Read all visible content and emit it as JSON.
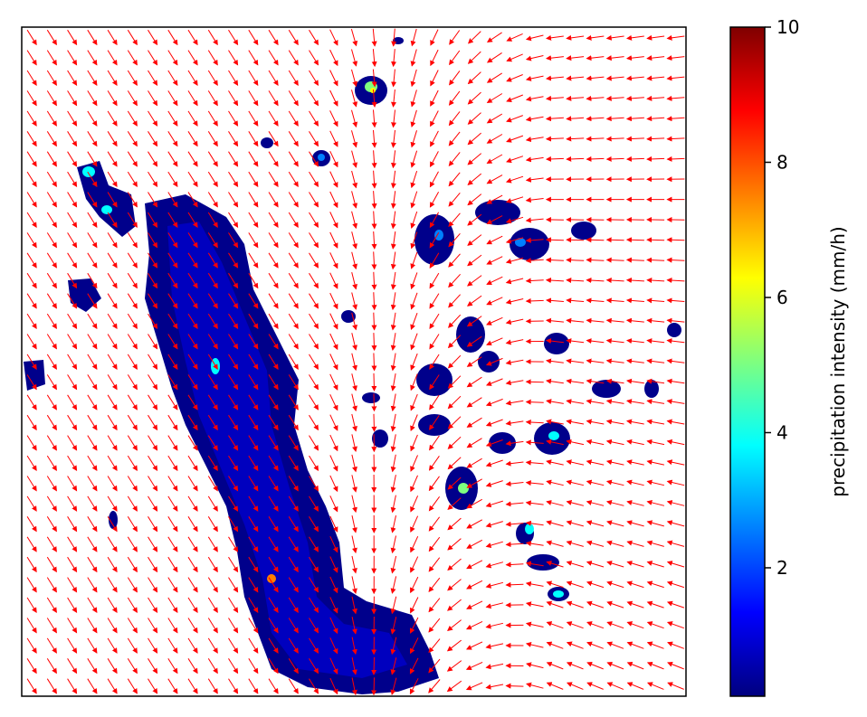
{
  "chart_data": {
    "type": "heatmap",
    "subtype": "precipitation-field-with-motion-vectors",
    "title": "",
    "xlabel": "",
    "ylabel": "",
    "grid": false,
    "colorbar": {
      "label": "precipitation intensity (mm/h)",
      "colormap": "jet",
      "vmin": 0.1,
      "vmax": 10,
      "ticks": [
        2,
        4,
        6,
        8,
        10
      ],
      "tick_labels": [
        "2",
        "4",
        "6",
        "8",
        "10"
      ],
      "colors": [
        "#00007f",
        "#0000ff",
        "#007fff",
        "#00ffff",
        "#7fff7f",
        "#ffff00",
        "#ff7f00",
        "#ff0000",
        "#7f0000"
      ]
    },
    "vector_field": {
      "color": "#ff0000",
      "flow_pattern": "southeastward on the left half, curving westward on the right half",
      "grid_columns": 33,
      "grid_rows": 33
    }
  }
}
